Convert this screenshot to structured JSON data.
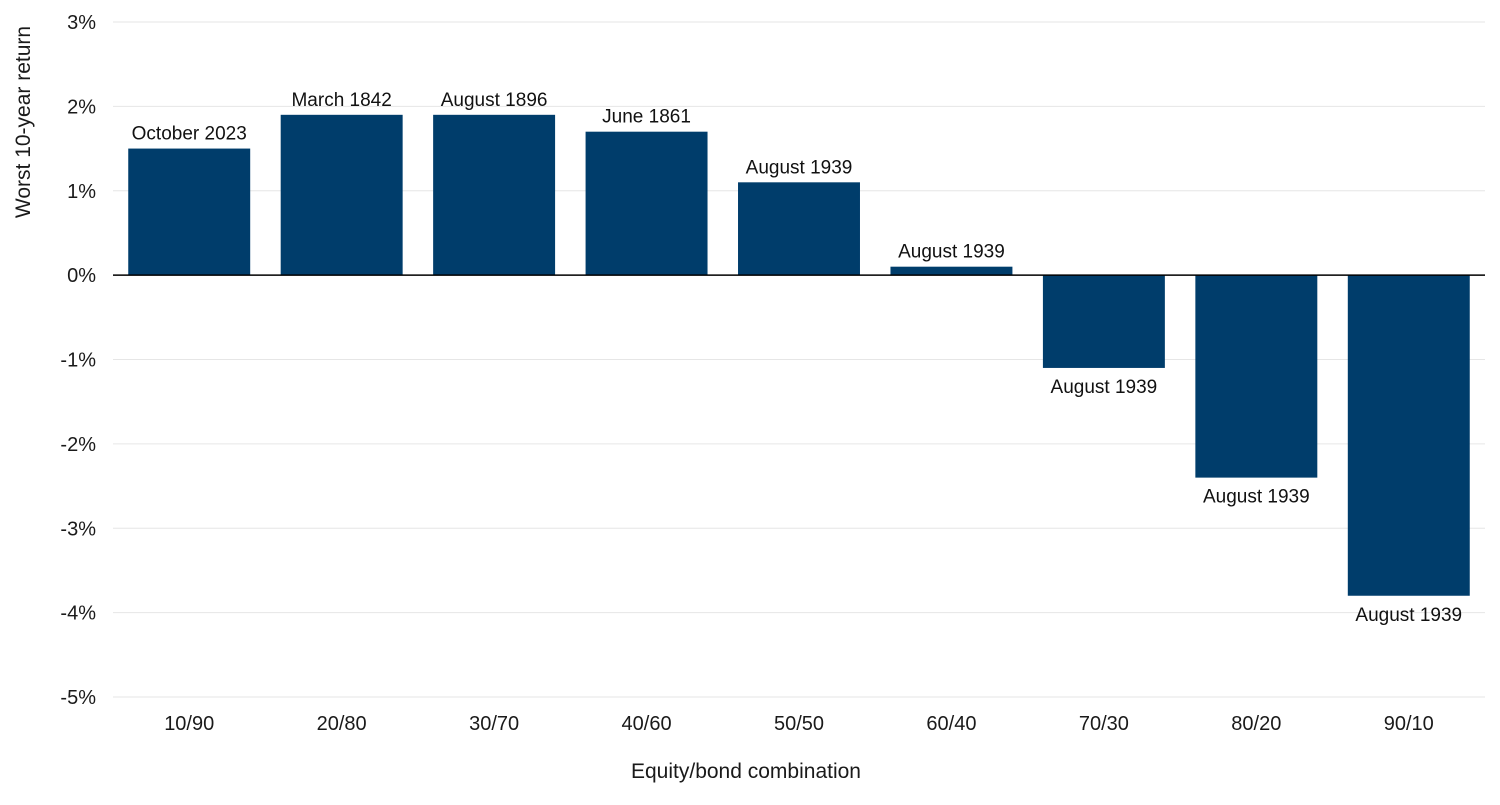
{
  "chart_data": {
    "type": "bar",
    "xlabel": "Equity/bond combination",
    "ylabel": "Worst 10-year return",
    "ylim": [
      -5,
      3
    ],
    "yticks": [
      3,
      2,
      1,
      0,
      -1,
      -2,
      -3,
      -4,
      -5
    ],
    "ytick_labels": [
      "3%",
      "2%",
      "1%",
      "0%",
      "-1%",
      "-2%",
      "-3%",
      "-4%",
      "-5%"
    ],
    "grid": true,
    "legend": "none",
    "categories": [
      "10/90",
      "20/80",
      "30/70",
      "40/60",
      "50/50",
      "60/40",
      "70/30",
      "80/20",
      "90/10"
    ],
    "values": [
      1.5,
      1.9,
      1.9,
      1.7,
      1.1,
      0.1,
      -1.1,
      -2.4,
      -3.8
    ],
    "data_labels": [
      "October 2023",
      "March 1842",
      "August 1896",
      "June 1861",
      "August 1939",
      "August 1939",
      "August 1939",
      "August 1939",
      "August 1939"
    ],
    "bar_color": "#003d6b",
    "gridline_color": "#e6e6e6",
    "zero_line_color": "#000000"
  }
}
